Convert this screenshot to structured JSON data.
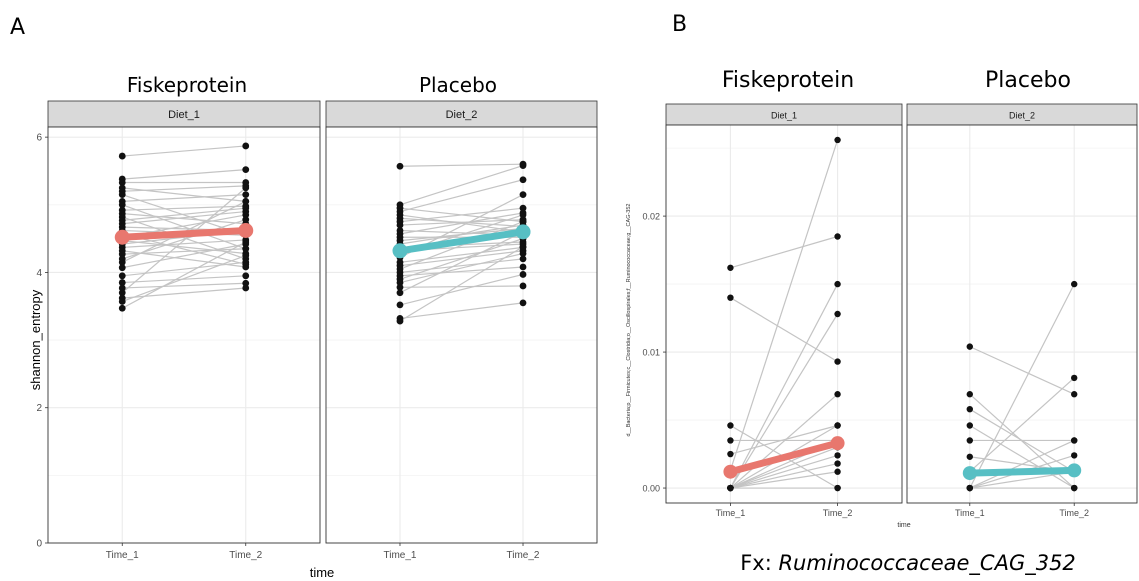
{
  "panels": [
    {
      "letter": "A",
      "ylabel": "shannon_entropy",
      "xlabel": "time",
      "facets": [
        {
          "title": "Fiskeprotein",
          "strip": "Diet_1"
        },
        {
          "title": "Placebo",
          "strip": "Diet_2"
        }
      ]
    },
    {
      "letter": "B",
      "ylabel": "d__Bacteria;p__Firmicutes;c__Clostridia;o__Oscillospirales;f__Ruminococcaceae;g__CAG-352",
      "xlabel": "time",
      "facets": [
        {
          "title": "Fiskeprotein",
          "strip": "Diet_1"
        },
        {
          "title": "Placebo",
          "strip": "Diet_2"
        }
      ],
      "caption_prefix": "Fx: ",
      "caption_italic": "Ruminococcaceae_CAG_352"
    }
  ],
  "colors": {
    "diet_1_mean": "#e8776e",
    "diet_2_mean": "#57bfc4",
    "paired_line": "#c4c4c4",
    "point": "#111111",
    "strip_bg": "#d9d9d9",
    "grid": "#ebebeb"
  },
  "chart_data": [
    {
      "type": "scatter",
      "id": "A",
      "ylabel": "shannon_entropy",
      "xlabel": "time",
      "categories": [
        "Time_1",
        "Time_2"
      ],
      "ylim": [
        0,
        6.15
      ],
      "yticks": [
        0,
        2,
        4,
        6
      ],
      "grid": true,
      "facets": [
        {
          "strip": "Diet_1",
          "mean_color": "#e8776e",
          "mean": [
            4.52,
            4.62
          ],
          "pairs": [
            [
              5.72,
              5.87
            ],
            [
              5.38,
              5.52
            ],
            [
              5.33,
              5.33
            ],
            [
              5.25,
              5.05
            ],
            [
              5.2,
              5.28
            ],
            [
              5.15,
              4.55
            ],
            [
              5.05,
              5.15
            ],
            [
              5.0,
              4.35
            ],
            [
              4.92,
              4.98
            ],
            [
              4.87,
              4.72
            ],
            [
              4.82,
              4.2
            ],
            [
              4.77,
              4.95
            ],
            [
              4.72,
              4.9
            ],
            [
              4.67,
              4.62
            ],
            [
              4.62,
              4.55
            ],
            [
              4.57,
              4.12
            ],
            [
              4.52,
              4.85
            ],
            [
              4.47,
              4.28
            ],
            [
              4.42,
              4.62
            ],
            [
              4.37,
              4.48
            ],
            [
              4.32,
              4.08
            ],
            [
              4.27,
              4.35
            ],
            [
              4.2,
              4.78
            ],
            [
              4.15,
              5.05
            ],
            [
              4.07,
              4.42
            ],
            [
              3.95,
              4.15
            ],
            [
              3.85,
              3.95
            ],
            [
              3.77,
              3.84
            ],
            [
              3.7,
              5.25
            ],
            [
              3.62,
              3.77
            ],
            [
              3.57,
              4.25
            ],
            [
              3.47,
              4.45
            ]
          ]
        },
        {
          "strip": "Diet_2",
          "mean_color": "#57bfc4",
          "mean": [
            4.32,
            4.6
          ],
          "pairs": [
            [
              5.57,
              5.6
            ],
            [
              5.0,
              5.58
            ],
            [
              4.95,
              4.75
            ],
            [
              4.9,
              5.37
            ],
            [
              4.85,
              4.6
            ],
            [
              4.8,
              4.68
            ],
            [
              4.75,
              4.95
            ],
            [
              4.7,
              4.78
            ],
            [
              4.62,
              4.55
            ],
            [
              4.57,
              4.88
            ],
            [
              4.52,
              4.52
            ],
            [
              4.47,
              4.65
            ],
            [
              4.42,
              4.7
            ],
            [
              4.37,
              4.45
            ],
            [
              4.32,
              4.42
            ],
            [
              4.27,
              4.85
            ],
            [
              4.22,
              5.15
            ],
            [
              4.15,
              4.37
            ],
            [
              4.1,
              4.32
            ],
            [
              4.05,
              4.75
            ],
            [
              4.0,
              4.2
            ],
            [
              3.95,
              4.08
            ],
            [
              3.9,
              4.5
            ],
            [
              3.85,
              4.28
            ],
            [
              3.78,
              3.8
            ],
            [
              3.7,
              4.6
            ],
            [
              3.52,
              3.97
            ],
            [
              3.32,
              3.55
            ],
            [
              3.28,
              4.38
            ]
          ]
        }
      ]
    },
    {
      "type": "scatter",
      "id": "B",
      "ylabel": "d__Bacteria;p__Firmicutes;c__Clostridia;o__Oscillospirales;f__Ruminococcaceae;g__CAG-352",
      "xlabel": "time",
      "categories": [
        "Time_1",
        "Time_2"
      ],
      "ylim": [
        -0.0011,
        0.0267
      ],
      "yticks": [
        0.0,
        0.01,
        0.02
      ],
      "ytick_labels": [
        "0.00",
        "0.01",
        "0.02"
      ],
      "grid": true,
      "facets": [
        {
          "strip": "Diet_1",
          "mean_color": "#e8776e",
          "mean": [
            0.0012,
            0.0033
          ],
          "pairs": [
            [
              0.0162,
              0.0185
            ],
            [
              0.014,
              0.0093
            ],
            [
              0.0046,
              0.0
            ],
            [
              0.0035,
              0.0035
            ],
            [
              0.0025,
              0.0046
            ],
            [
              0.0013,
              0.0256
            ],
            [
              0.0,
              0.015
            ],
            [
              0.0,
              0.0128
            ],
            [
              0.0,
              0.0069
            ],
            [
              0.0,
              0.003
            ],
            [
              0.0,
              0.0024
            ],
            [
              0.0,
              0.0
            ],
            [
              0.0,
              0.0012
            ],
            [
              0.0,
              0.0046
            ],
            [
              0.0,
              0.0035
            ],
            [
              0.0,
              0.0018
            ]
          ]
        },
        {
          "strip": "Diet_2",
          "mean_color": "#57bfc4",
          "mean": [
            0.0011,
            0.0013
          ],
          "pairs": [
            [
              0.0104,
              0.0069
            ],
            [
              0.0069,
              0.0
            ],
            [
              0.0058,
              0.0012
            ],
            [
              0.0046,
              0.0
            ],
            [
              0.0035,
              0.0035
            ],
            [
              0.0023,
              0.0012
            ],
            [
              0.0012,
              0.0081
            ],
            [
              0.0,
              0.015
            ],
            [
              0.0,
              0.0024
            ],
            [
              0.0,
              0.0
            ],
            [
              0.0,
              0.0035
            ],
            [
              0.0,
              0.0012
            ]
          ]
        }
      ]
    }
  ]
}
